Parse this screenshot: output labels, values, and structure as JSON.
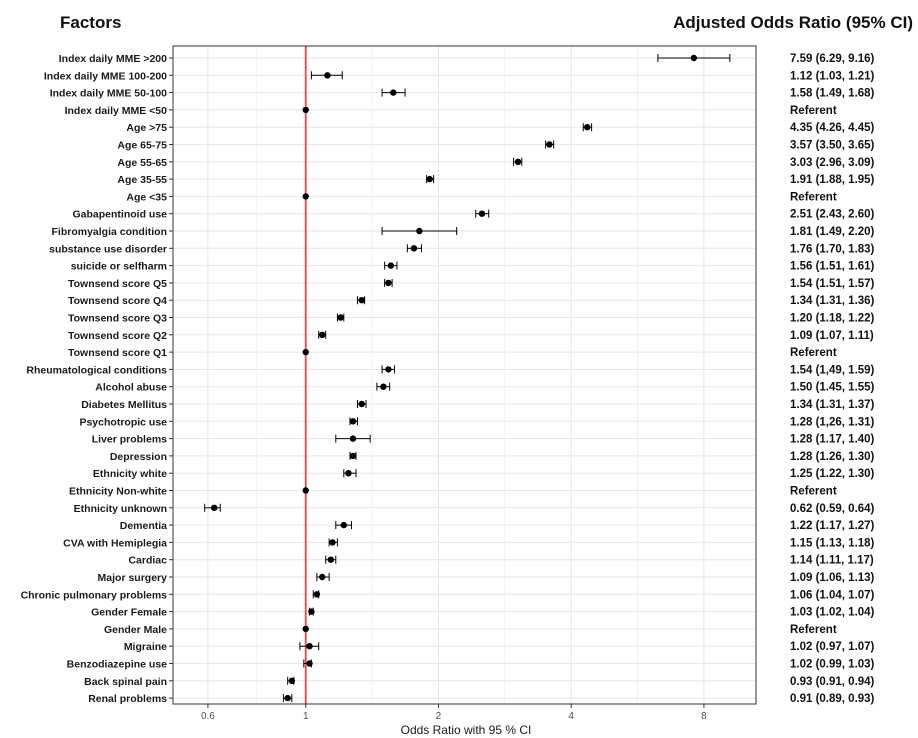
{
  "chart_data": {
    "type": "forest",
    "left_header": "Factors",
    "right_header": "Adjusted Odds Ratio (95% CI)",
    "xlabel": "Odds Ratio with 95 % CI",
    "x_scale": "log",
    "xlim": [
      0.5,
      10.5
    ],
    "x_ticks": [
      0.6,
      1,
      2,
      4,
      8
    ],
    "x_tick_labels": [
      "0.6",
      "1",
      "2",
      "4",
      "8"
    ],
    "reference_line": 1,
    "colors": {
      "reference_line": "#e8474e",
      "points": "#000000",
      "grid": "#e6e6e6",
      "panel_border": "#333333"
    },
    "grid": true,
    "rows": [
      {
        "label": "Index daily MME >200",
        "or": 7.59,
        "lo": 6.29,
        "hi": 9.16,
        "text": "7.59 (6.29, 9.16)"
      },
      {
        "label": "Index daily MME 100-200",
        "or": 1.12,
        "lo": 1.03,
        "hi": 1.21,
        "text": "1.12 (1.03, 1.21)"
      },
      {
        "label": "Index daily MME 50-100",
        "or": 1.58,
        "lo": 1.49,
        "hi": 1.68,
        "text": "1.58 (1.49, 1.68)"
      },
      {
        "label": "Index daily MME <50",
        "or": 1,
        "lo": 1,
        "hi": 1,
        "text": "Referent"
      },
      {
        "label": "Age >75",
        "or": 4.35,
        "lo": 4.26,
        "hi": 4.45,
        "text": "4.35 (4.26, 4.45)"
      },
      {
        "label": "Age 65-75",
        "or": 3.57,
        "lo": 3.5,
        "hi": 3.65,
        "text": "3.57 (3.50, 3.65)"
      },
      {
        "label": "Age 55-65",
        "or": 3.03,
        "lo": 2.96,
        "hi": 3.09,
        "text": "3.03 (2.96, 3.09)"
      },
      {
        "label": "Age 35-55",
        "or": 1.91,
        "lo": 1.88,
        "hi": 1.95,
        "text": "1.91 (1.88, 1.95)"
      },
      {
        "label": "Age <35",
        "or": 1,
        "lo": 1,
        "hi": 1,
        "text": "Referent"
      },
      {
        "label": "Gabapentinoid use",
        "or": 2.51,
        "lo": 2.43,
        "hi": 2.6,
        "text": "2.51 (2.43, 2.60)"
      },
      {
        "label": "Fibromyalgia condition",
        "or": 1.81,
        "lo": 1.49,
        "hi": 2.2,
        "text": "1.81 (1.49, 2.20)"
      },
      {
        "label": "substance use disorder",
        "or": 1.76,
        "lo": 1.7,
        "hi": 1.83,
        "text": "1.76 (1.70, 1.83)"
      },
      {
        "label": "suicide or selfharm",
        "or": 1.56,
        "lo": 1.51,
        "hi": 1.61,
        "text": "1.56 (1.51, 1.61)"
      },
      {
        "label": "Townsend score Q5",
        "or": 1.54,
        "lo": 1.51,
        "hi": 1.57,
        "text": "1.54 (1.51, 1.57)"
      },
      {
        "label": "Townsend score Q4",
        "or": 1.34,
        "lo": 1.31,
        "hi": 1.36,
        "text": "1.34 (1.31, 1.36)"
      },
      {
        "label": "Townsend score Q3",
        "or": 1.2,
        "lo": 1.18,
        "hi": 1.22,
        "text": "1.20 (1.18, 1.22)"
      },
      {
        "label": "Townsend score Q2",
        "or": 1.09,
        "lo": 1.07,
        "hi": 1.11,
        "text": "1.09 (1.07, 1.11)"
      },
      {
        "label": "Townsend score Q1",
        "or": 1,
        "lo": 1,
        "hi": 1,
        "text": "Referent"
      },
      {
        "label": "Rheumatological conditions",
        "or": 1.54,
        "lo": 1.49,
        "hi": 1.59,
        "text": "1.54 (1,49, 1.59)"
      },
      {
        "label": "Alcohol abuse",
        "or": 1.5,
        "lo": 1.45,
        "hi": 1.55,
        "text": "1.50 (1.45, 1.55)"
      },
      {
        "label": "Diabetes Mellitus",
        "or": 1.34,
        "lo": 1.31,
        "hi": 1.37,
        "text": "1.34 (1.31, 1.37)"
      },
      {
        "label": "Psychotropic use",
        "or": 1.28,
        "lo": 1.26,
        "hi": 1.31,
        "text": "1.28 (1,26, 1.31)"
      },
      {
        "label": "Liver problems",
        "or": 1.28,
        "lo": 1.17,
        "hi": 1.4,
        "text": "1.28 (1.17, 1.40)"
      },
      {
        "label": "Depression",
        "or": 1.28,
        "lo": 1.26,
        "hi": 1.3,
        "text": "1.28 (1.26, 1.30)"
      },
      {
        "label": "Ethnicity white",
        "or": 1.25,
        "lo": 1.22,
        "hi": 1.3,
        "text": "1.25 (1.22, 1.30)"
      },
      {
        "label": "Ethnicity Non-white",
        "or": 1,
        "lo": 1,
        "hi": 1,
        "text": "Referent"
      },
      {
        "label": "Ethnicity unknown",
        "or": 0.62,
        "lo": 0.59,
        "hi": 0.64,
        "text": "0.62 (0.59, 0.64)"
      },
      {
        "label": "Dementia",
        "or": 1.22,
        "lo": 1.17,
        "hi": 1.27,
        "text": "1.22 (1.17, 1.27)"
      },
      {
        "label": "CVA with Hemiplegia",
        "or": 1.15,
        "lo": 1.13,
        "hi": 1.18,
        "text": "1.15 (1.13, 1.18)"
      },
      {
        "label": "Cardiac",
        "or": 1.14,
        "lo": 1.11,
        "hi": 1.17,
        "text": "1.14 (1.11, 1.17)"
      },
      {
        "label": "Major surgery",
        "or": 1.09,
        "lo": 1.06,
        "hi": 1.13,
        "text": "1.09 (1.06, 1.13)"
      },
      {
        "label": "Chronic pulmonary problems",
        "or": 1.06,
        "lo": 1.04,
        "hi": 1.07,
        "text": "1.06 (1.04, 1.07)"
      },
      {
        "label": "Gender Female",
        "or": 1.03,
        "lo": 1.02,
        "hi": 1.04,
        "text": "1.03 (1.02, 1.04)"
      },
      {
        "label": "Gender Male",
        "or": 1,
        "lo": 1,
        "hi": 1,
        "text": "Referent"
      },
      {
        "label": "Migraine",
        "or": 1.02,
        "lo": 0.97,
        "hi": 1.07,
        "text": "1.02 (0.97, 1.07)"
      },
      {
        "label": "Benzodiazepine use",
        "or": 1.02,
        "lo": 0.99,
        "hi": 1.03,
        "text": "1.02 (0.99, 1.03)"
      },
      {
        "label": "Back spinal pain",
        "or": 0.93,
        "lo": 0.91,
        "hi": 0.94,
        "text": "0.93 (0.91, 0.94)"
      },
      {
        "label": "Renal problems",
        "or": 0.91,
        "lo": 0.89,
        "hi": 0.93,
        "text": "0.91 (0.89, 0.93)"
      }
    ]
  }
}
